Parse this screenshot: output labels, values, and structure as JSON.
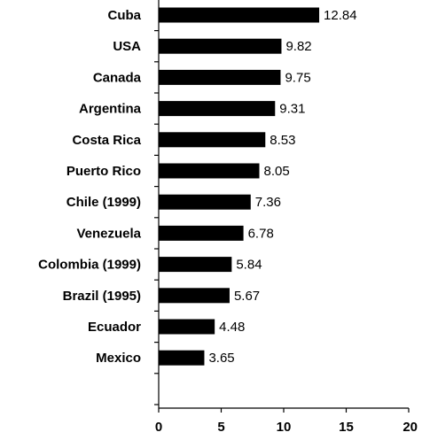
{
  "chart_data": {
    "type": "bar",
    "orientation": "horizontal",
    "categories": [
      "Cuba",
      "USA",
      "Canada",
      "Argentina",
      "Costa Rica",
      "Puerto Rico",
      "Chile (1999)",
      "Venezuela",
      "Colombia (1999)",
      "Brazil (1995)",
      "Ecuador",
      "Mexico"
    ],
    "values": [
      12.84,
      9.82,
      9.75,
      9.31,
      8.53,
      8.05,
      7.36,
      6.78,
      5.84,
      5.67,
      4.48,
      3.65
    ],
    "value_labels": [
      "12.84",
      "9.82",
      "9.75",
      "9.31",
      "8.53",
      "8.05",
      "7.36",
      "6.78",
      "5.84",
      "5.67",
      "4.48",
      "3.65"
    ],
    "xlim": [
      0,
      20
    ],
    "xticks": [
      0,
      5,
      10,
      15,
      20
    ],
    "title": "",
    "xlabel": "",
    "ylabel": "",
    "bar_color": "#000000",
    "grid": false,
    "legend": "none"
  }
}
